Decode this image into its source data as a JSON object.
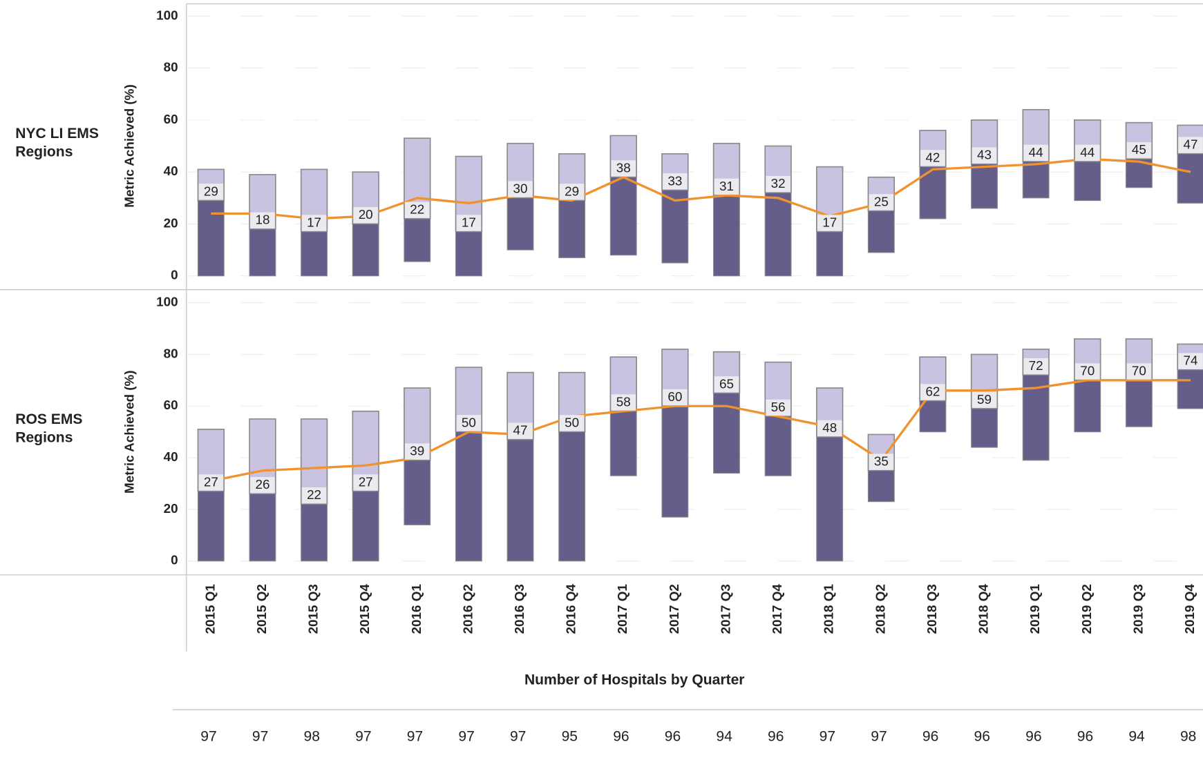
{
  "chart_data": {
    "type": "range_bar",
    "ylabel": "Metric Achieved (%)",
    "ylim": [
      0,
      100
    ],
    "yticks": [
      0,
      20,
      40,
      60,
      80,
      100
    ],
    "grid": true,
    "colors": {
      "low": "#655d8a",
      "high": "#c9c3e1",
      "line": "#f0922e",
      "label_box": "#ebebef"
    },
    "categories": [
      "2015 Q1",
      "2015 Q2",
      "2015 Q3",
      "2015 Q4",
      "2016 Q1",
      "2016 Q2",
      "2016 Q3",
      "2016 Q4",
      "2017 Q1",
      "2017 Q2",
      "2017 Q3",
      "2017 Q4",
      "2018 Q1",
      "2018 Q2",
      "2018 Q3",
      "2018 Q4",
      "2019 Q1",
      "2019 Q2",
      "2019 Q3",
      "2019 Q4"
    ],
    "panels": [
      {
        "label": "NYC LI EMS Regions",
        "low": [
          0,
          0,
          0,
          0,
          5.5,
          0,
          10,
          7,
          8,
          5,
          0,
          0,
          0,
          9,
          22,
          26,
          30,
          29,
          34,
          28
        ],
        "values": [
          29,
          18,
          17,
          20,
          22,
          17,
          30,
          29,
          38,
          33,
          31,
          32,
          17,
          25,
          42,
          43,
          44,
          44,
          45,
          47
        ],
        "high": [
          41,
          39,
          41,
          40,
          53,
          46,
          51,
          47,
          54,
          47,
          51,
          50,
          42,
          38,
          56,
          60,
          64,
          60,
          59,
          58
        ],
        "line": [
          24,
          24,
          22,
          23,
          30,
          28,
          31,
          29,
          38,
          29,
          31,
          30,
          23,
          28,
          41,
          42,
          43,
          45,
          44,
          40
        ]
      },
      {
        "label": "ROS EMS Regions",
        "low": [
          0,
          0,
          0,
          0,
          14,
          0,
          0,
          0,
          33,
          17,
          34,
          33,
          0,
          23,
          50,
          44,
          39,
          50,
          52,
          59
        ],
        "values": [
          27,
          26,
          22,
          27,
          39,
          50,
          47,
          50,
          58,
          60,
          65,
          56,
          48,
          35,
          62,
          59,
          72,
          70,
          70,
          74
        ],
        "high": [
          51,
          55,
          55,
          58,
          67,
          75,
          73,
          73,
          79,
          82,
          81,
          77,
          67,
          49,
          79,
          80,
          82,
          86,
          86,
          84
        ],
        "line": [
          31,
          35,
          36,
          37,
          40,
          50,
          49,
          56,
          58,
          60,
          60,
          56,
          52,
          39,
          66,
          66,
          67,
          70,
          70,
          70
        ]
      }
    ],
    "hospitals_title": "Number of Hospitals by Quarter",
    "hospitals": [
      97,
      97,
      98,
      97,
      97,
      97,
      97,
      95,
      96,
      96,
      94,
      96,
      97,
      97,
      96,
      96,
      96,
      96,
      94,
      98
    ]
  }
}
